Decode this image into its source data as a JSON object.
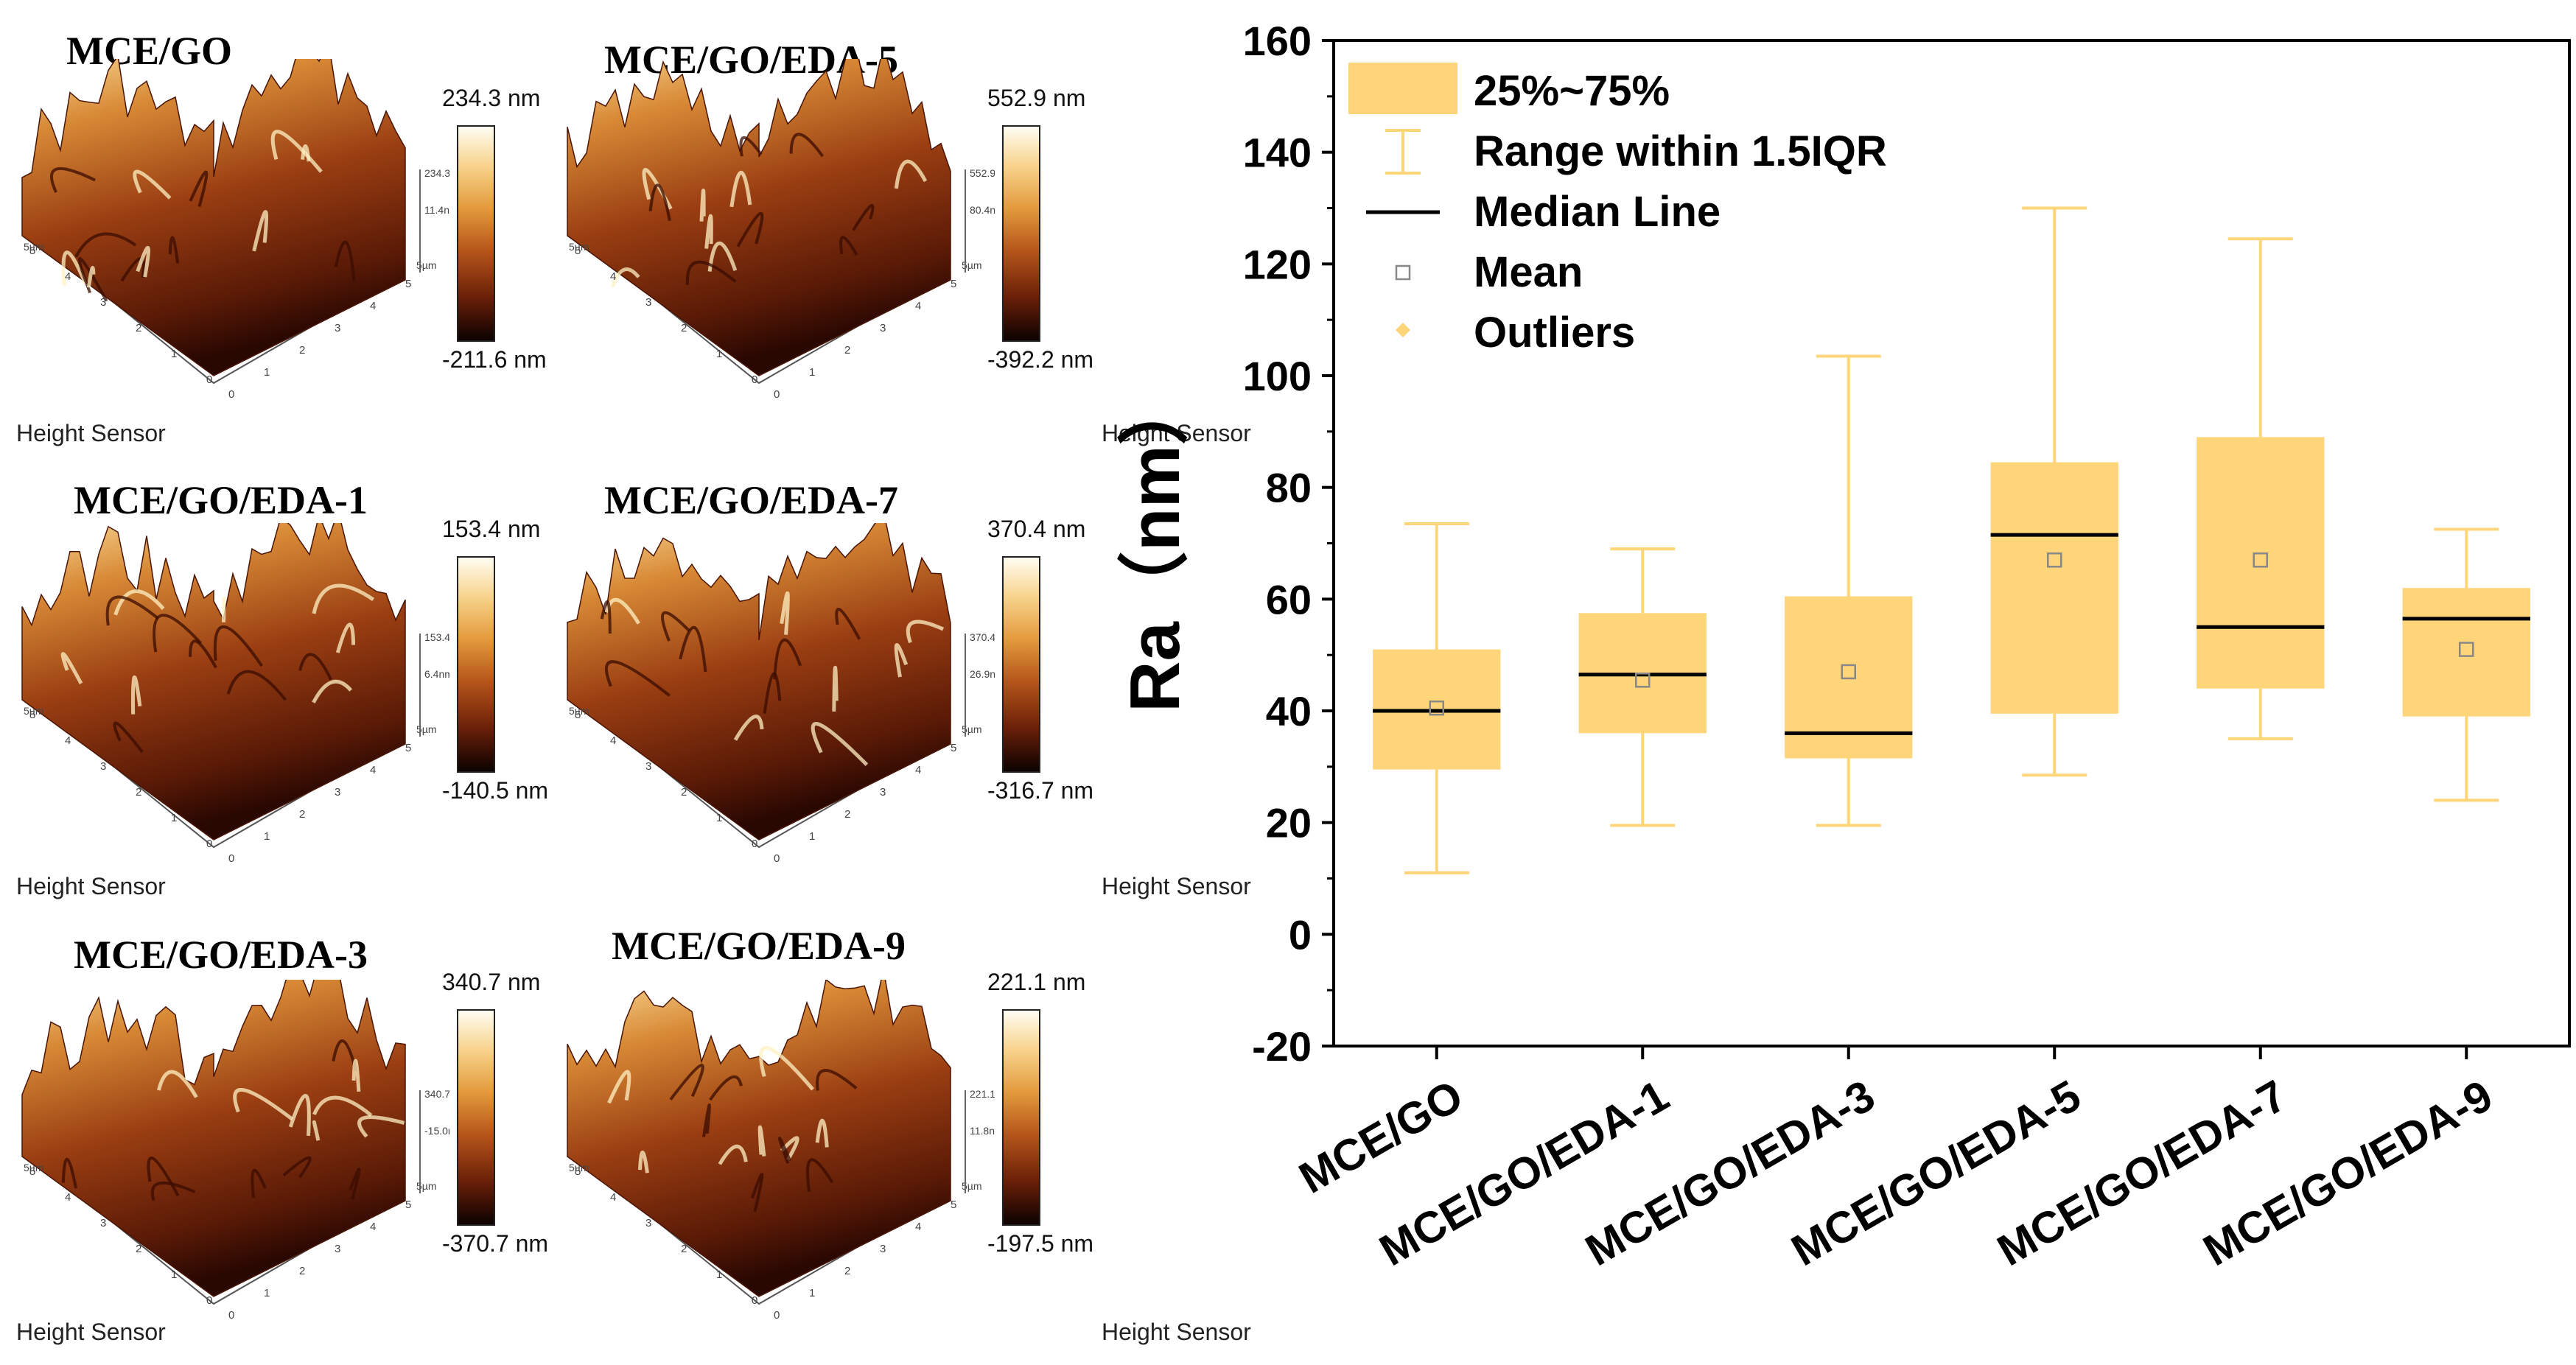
{
  "afm_panels": [
    {
      "title": "MCE/GO",
      "max": "234.3 nm",
      "min": "-211.6 nm",
      "cb_max_small": "234.3nm",
      "cb_mid_small": "11.4nm",
      "sensor": "Height Sensor",
      "axis_label": "5µm",
      "ticks": [
        "0",
        "1",
        "2",
        "3",
        "4",
        "5"
      ]
    },
    {
      "title": "MCE/GO/EDA-5",
      "max": "552.9 nm",
      "min": "-392.2 nm",
      "cb_max_small": "552.9nm",
      "cb_mid_small": "80.4nm",
      "sensor": "Height Sensor",
      "axis_label": "5µm",
      "ticks": [
        "0",
        "1",
        "2",
        "3",
        "4",
        "5"
      ]
    },
    {
      "title": "MCE/GO/EDA-1",
      "max": "153.4 nm",
      "min": "-140.5 nm",
      "cb_max_small": "153.4nm",
      "cb_mid_small": "6.4nm",
      "sensor": "Height Sensor",
      "axis_label": "5µm",
      "ticks": [
        "0",
        "1",
        "2",
        "3",
        "4",
        "5"
      ]
    },
    {
      "title": "MCE/GO/EDA-7",
      "max": "370.4 nm",
      "min": "-316.7 nm",
      "cb_max_small": "370.4nm",
      "cb_mid_small": "26.9nm",
      "sensor": "Height Sensor",
      "axis_label": "5µm",
      "ticks": [
        "0",
        "1",
        "2",
        "3",
        "4",
        "5"
      ]
    },
    {
      "title": "MCE/GO/EDA-3",
      "max": "340.7 nm",
      "min": "-370.7 nm",
      "cb_max_small": "340.7nm",
      "cb_mid_small": "-15.0nm",
      "sensor": "Height Sensor",
      "axis_label": "5µm",
      "ticks": [
        "0",
        "1",
        "2",
        "3",
        "4",
        "5"
      ]
    },
    {
      "title": "MCE/GO/EDA-9",
      "max": "221.1 nm",
      "min": "-197.5 nm",
      "cb_max_small": "221.1nm",
      "cb_mid_small": "11.8nm",
      "sensor": "Height Sensor",
      "axis_label": "5µm",
      "ticks": [
        "0",
        "1",
        "2",
        "3",
        "4",
        "5"
      ]
    }
  ],
  "chart_data": {
    "type": "box",
    "title": "",
    "xlabel": "",
    "ylabel": "Ra（nm）",
    "ylim": [
      -20,
      160
    ],
    "yticks": [
      -20,
      0,
      20,
      40,
      60,
      80,
      100,
      120,
      140,
      160
    ],
    "categories": [
      "MCE/GO",
      "MCE/GO/EDA-1",
      "MCE/GO/EDA-3",
      "MCE/GO/EDA-5",
      "MCE/GO/EDA-7",
      "MCE/GO/EDA-9"
    ],
    "boxes": [
      {
        "whisker_low": 11,
        "q1": 29.5,
        "median": 40,
        "q3": 51,
        "whisker_high": 73.5,
        "mean": 40.5
      },
      {
        "whisker_low": 19.5,
        "q1": 36,
        "median": 46.5,
        "q3": 57.5,
        "whisker_high": 69,
        "mean": 45.5
      },
      {
        "whisker_low": 19.5,
        "q1": 31.5,
        "median": 36,
        "q3": 60.5,
        "whisker_high": 103.5,
        "mean": 47
      },
      {
        "whisker_low": 28.5,
        "q1": 39.5,
        "median": 71.5,
        "q3": 84.5,
        "whisker_high": 130,
        "mean": 67
      },
      {
        "whisker_low": 35,
        "q1": 44,
        "median": 55,
        "q3": 89,
        "whisker_high": 124.5,
        "mean": 67
      },
      {
        "whisker_low": 24,
        "q1": 39,
        "median": 56.5,
        "q3": 62,
        "whisker_high": 72.5,
        "mean": 51
      }
    ],
    "legend": {
      "position": "top-left",
      "box": "25%~75%",
      "range": "Range within 1.5IQR",
      "median": "Median Line",
      "mean": "Mean",
      "outliers": "Outliers"
    },
    "colors": {
      "box": "#FFD57A",
      "whisker": "#FFD57A",
      "median": "#000000",
      "mean_marker": "#888888"
    }
  }
}
